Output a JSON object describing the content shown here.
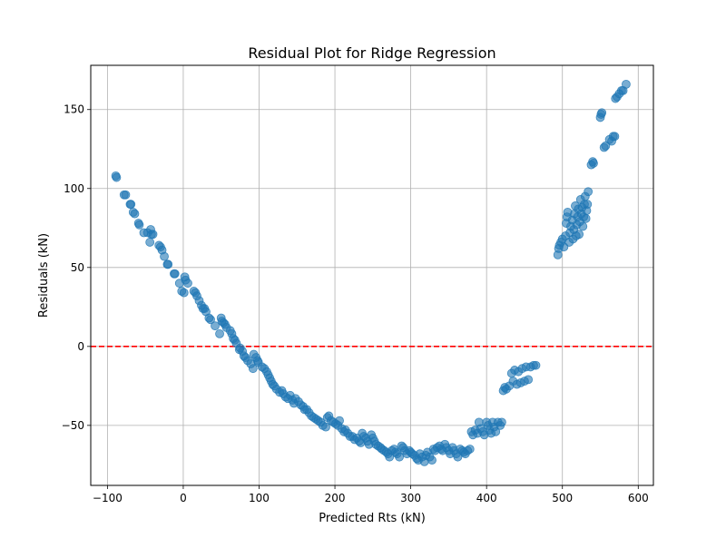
{
  "chart_data": {
    "type": "scatter",
    "title": "Residual Plot for Ridge Regression",
    "xlabel": "Predicted Rts (kN)",
    "ylabel": "Residuals (kN)",
    "xlim": [
      -122,
      620
    ],
    "ylim": [
      -88,
      178
    ],
    "xticks": [
      -100,
      0,
      100,
      200,
      300,
      400,
      500,
      600
    ],
    "yticks": [
      -50,
      0,
      50,
      100,
      150
    ],
    "grid": true,
    "reference_line": {
      "y": 0,
      "color": "#ff0000",
      "style": "dashed"
    },
    "marker_color": "#1f77b4",
    "points": [
      [
        -89,
        108
      ],
      [
        -88,
        107
      ],
      [
        -78,
        96
      ],
      [
        -76,
        96
      ],
      [
        -70,
        90
      ],
      [
        -69,
        90
      ],
      [
        -66,
        85
      ],
      [
        -64,
        84
      ],
      [
        -59,
        78
      ],
      [
        -58,
        77
      ],
      [
        -52,
        72
      ],
      [
        -47,
        72
      ],
      [
        -44,
        66
      ],
      [
        -43,
        74
      ],
      [
        -42,
        71
      ],
      [
        -40,
        71
      ],
      [
        -32,
        64
      ],
      [
        -30,
        63
      ],
      [
        -28,
        61
      ],
      [
        -25,
        57
      ],
      [
        -21,
        52
      ],
      [
        -20,
        52
      ],
      [
        -12,
        46
      ],
      [
        -11,
        46
      ],
      [
        -5,
        40
      ],
      [
        -2,
        35
      ],
      [
        1,
        34
      ],
      [
        2,
        44
      ],
      [
        3,
        42
      ],
      [
        6,
        40
      ],
      [
        14,
        35
      ],
      [
        16,
        34
      ],
      [
        18,
        32
      ],
      [
        21,
        29
      ],
      [
        24,
        26
      ],
      [
        26,
        24
      ],
      [
        28,
        24
      ],
      [
        30,
        22
      ],
      [
        34,
        18
      ],
      [
        36,
        17
      ],
      [
        42,
        13
      ],
      [
        48,
        8
      ],
      [
        50,
        18
      ],
      [
        51,
        16
      ],
      [
        53,
        15
      ],
      [
        55,
        14
      ],
      [
        57,
        12
      ],
      [
        62,
        10
      ],
      [
        64,
        8
      ],
      [
        66,
        5
      ],
      [
        68,
        4
      ],
      [
        70,
        2
      ],
      [
        74,
        -2
      ],
      [
        75,
        -1
      ],
      [
        78,
        -3
      ],
      [
        80,
        -6
      ],
      [
        82,
        -7
      ],
      [
        85,
        -9
      ],
      [
        89,
        -11
      ],
      [
        92,
        -14
      ],
      [
        93,
        -5
      ],
      [
        96,
        -7
      ],
      [
        98,
        -9
      ],
      [
        99,
        -10
      ],
      [
        104,
        -13
      ],
      [
        107,
        -14
      ],
      [
        110,
        -16
      ],
      [
        112,
        -18
      ],
      [
        114,
        -20
      ],
      [
        116,
        -22
      ],
      [
        118,
        -24
      ],
      [
        120,
        -25
      ],
      [
        123,
        -27
      ],
      [
        127,
        -29
      ],
      [
        130,
        -28
      ],
      [
        132,
        -30
      ],
      [
        135,
        -32
      ],
      [
        138,
        -33
      ],
      [
        141,
        -31
      ],
      [
        144,
        -34
      ],
      [
        146,
        -36
      ],
      [
        148,
        -33
      ],
      [
        152,
        -35
      ],
      [
        155,
        -37
      ],
      [
        158,
        -38
      ],
      [
        160,
        -40
      ],
      [
        163,
        -40
      ],
      [
        166,
        -42
      ],
      [
        169,
        -44
      ],
      [
        172,
        -45
      ],
      [
        175,
        -46
      ],
      [
        178,
        -47
      ],
      [
        181,
        -48
      ],
      [
        184,
        -50
      ],
      [
        188,
        -51
      ],
      [
        190,
        -45
      ],
      [
        192,
        -44
      ],
      [
        195,
        -47
      ],
      [
        198,
        -48
      ],
      [
        201,
        -49
      ],
      [
        204,
        -50
      ],
      [
        206,
        -47
      ],
      [
        209,
        -52
      ],
      [
        212,
        -54
      ],
      [
        214,
        -53
      ],
      [
        217,
        -55
      ],
      [
        220,
        -57
      ],
      [
        223,
        -57
      ],
      [
        226,
        -59
      ],
      [
        229,
        -58
      ],
      [
        232,
        -60
      ],
      [
        234,
        -61
      ],
      [
        236,
        -55
      ],
      [
        238,
        -57
      ],
      [
        241,
        -58
      ],
      [
        243,
        -60
      ],
      [
        245,
        -62
      ],
      [
        248,
        -56
      ],
      [
        250,
        -58
      ],
      [
        252,
        -60
      ],
      [
        254,
        -62
      ],
      [
        257,
        -63
      ],
      [
        260,
        -64
      ],
      [
        262,
        -65
      ],
      [
        265,
        -66
      ],
      [
        268,
        -67
      ],
      [
        270,
        -68
      ],
      [
        272,
        -70
      ],
      [
        275,
        -66
      ],
      [
        278,
        -65
      ],
      [
        280,
        -67
      ],
      [
        282,
        -68
      ],
      [
        285,
        -70
      ],
      [
        288,
        -63
      ],
      [
        290,
        -64
      ],
      [
        292,
        -66
      ],
      [
        295,
        -68
      ],
      [
        298,
        -66
      ],
      [
        300,
        -67
      ],
      [
        302,
        -68
      ],
      [
        305,
        -69
      ],
      [
        308,
        -71
      ],
      [
        310,
        -72
      ],
      [
        312,
        -68
      ],
      [
        315,
        -70
      ],
      [
        318,
        -73
      ],
      [
        320,
        -69
      ],
      [
        322,
        -67
      ],
      [
        325,
        -70
      ],
      [
        328,
        -72
      ],
      [
        330,
        -65
      ],
      [
        332,
        -66
      ],
      [
        335,
        -64
      ],
      [
        338,
        -63
      ],
      [
        340,
        -65
      ],
      [
        342,
        -66
      ],
      [
        345,
        -62
      ],
      [
        347,
        -64
      ],
      [
        350,
        -66
      ],
      [
        352,
        -68
      ],
      [
        355,
        -64
      ],
      [
        357,
        -66
      ],
      [
        360,
        -68
      ],
      [
        362,
        -70
      ],
      [
        365,
        -65
      ],
      [
        368,
        -66
      ],
      [
        370,
        -67
      ],
      [
        372,
        -68
      ],
      [
        375,
        -66
      ],
      [
        378,
        -65
      ],
      [
        380,
        -54
      ],
      [
        382,
        -56
      ],
      [
        385,
        -53
      ],
      [
        388,
        -55
      ],
      [
        390,
        -48
      ],
      [
        392,
        -52
      ],
      [
        395,
        -54
      ],
      [
        397,
        -56
      ],
      [
        400,
        -48
      ],
      [
        402,
        -50
      ],
      [
        404,
        -53
      ],
      [
        406,
        -55
      ],
      [
        408,
        -48
      ],
      [
        410,
        -51
      ],
      [
        412,
        -54
      ],
      [
        415,
        -48
      ],
      [
        418,
        -50
      ],
      [
        420,
        -48
      ],
      [
        422,
        -28
      ],
      [
        424,
        -26
      ],
      [
        426,
        -27
      ],
      [
        430,
        -25
      ],
      [
        433,
        -17
      ],
      [
        435,
        -22
      ],
      [
        437,
        -15
      ],
      [
        440,
        -24
      ],
      [
        442,
        -16
      ],
      [
        445,
        -23
      ],
      [
        447,
        -14
      ],
      [
        450,
        -22
      ],
      [
        452,
        -13
      ],
      [
        455,
        -21
      ],
      [
        458,
        -13
      ],
      [
        462,
        -12
      ],
      [
        465,
        -12
      ],
      [
        494,
        58
      ],
      [
        495,
        62
      ],
      [
        496,
        64
      ],
      [
        498,
        66
      ],
      [
        500,
        68
      ],
      [
        502,
        63
      ],
      [
        504,
        70
      ],
      [
        505,
        78
      ],
      [
        506,
        82
      ],
      [
        507,
        85
      ],
      [
        509,
        66
      ],
      [
        510,
        72
      ],
      [
        511,
        76
      ],
      [
        513,
        80
      ],
      [
        514,
        68
      ],
      [
        515,
        74
      ],
      [
        516,
        84
      ],
      [
        517,
        89
      ],
      [
        518,
        70
      ],
      [
        519,
        77
      ],
      [
        520,
        82
      ],
      [
        521,
        87
      ],
      [
        522,
        71
      ],
      [
        523,
        79
      ],
      [
        524,
        93
      ],
      [
        525,
        84
      ],
      [
        526,
        88
      ],
      [
        527,
        76
      ],
      [
        528,
        82
      ],
      [
        529,
        90
      ],
      [
        530,
        95
      ],
      [
        531,
        81
      ],
      [
        532,
        86
      ],
      [
        533,
        90
      ],
      [
        534,
        98
      ],
      [
        538,
        115
      ],
      [
        540,
        117
      ],
      [
        541,
        116
      ],
      [
        550,
        145
      ],
      [
        551,
        147
      ],
      [
        552,
        148
      ],
      [
        555,
        126
      ],
      [
        557,
        127
      ],
      [
        562,
        131
      ],
      [
        565,
        130
      ],
      [
        567,
        133
      ],
      [
        569,
        133
      ],
      [
        570,
        157
      ],
      [
        572,
        158
      ],
      [
        575,
        160
      ],
      [
        578,
        162
      ],
      [
        580,
        162
      ],
      [
        584,
        166
      ]
    ]
  }
}
